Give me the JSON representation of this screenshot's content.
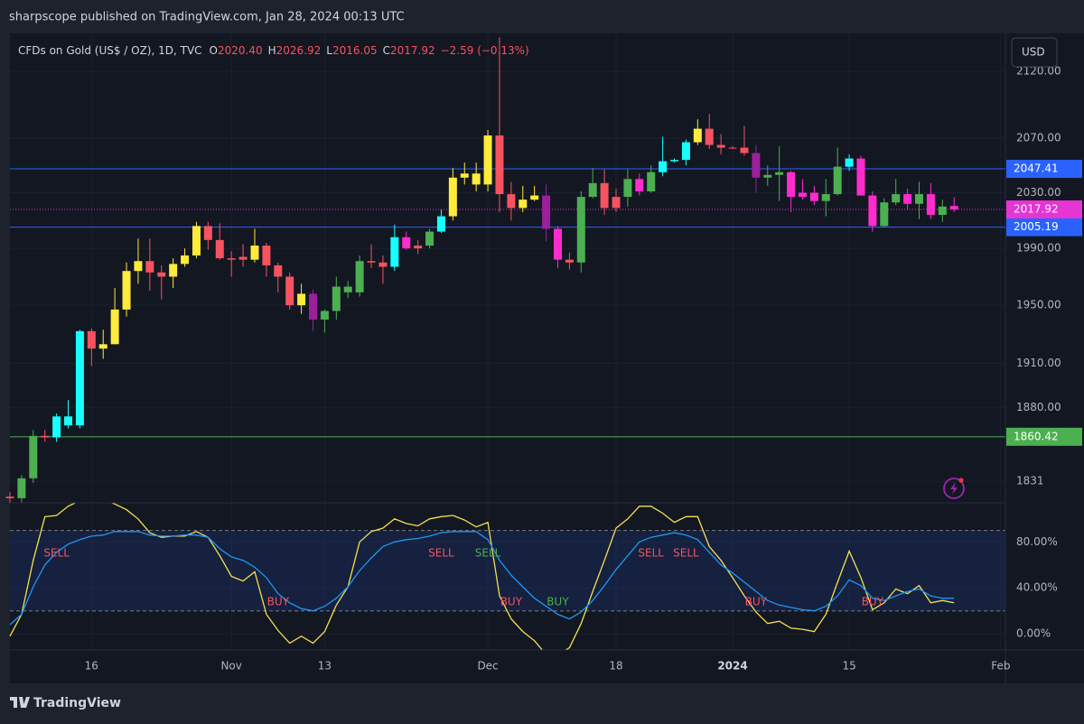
{
  "header": {
    "publisher": "sharpscope published on TradingView.com, Jan 28, 2024 00:13 UTC"
  },
  "chart_data": {
    "type": "candlestick",
    "symbol": "CFDs on Gold (US$ / OZ), 1D, TVC",
    "ohlc_legend": [
      {
        "key": "O",
        "value": "2020.40"
      },
      {
        "key": "H",
        "value": "2026.92"
      },
      {
        "key": "L",
        "value": "2016.05"
      },
      {
        "key": "C",
        "value": "2017.92"
      }
    ],
    "change": "−2.59 (−0.13%)",
    "currency": "USD",
    "candles": {
      "open": [
        1821,
        1820,
        1833,
        1861,
        1860,
        1874,
        1868,
        1932,
        1920,
        1923,
        1947,
        1974,
        1981,
        1973,
        1970,
        1979,
        1985,
        2006,
        1996,
        1983,
        1984,
        1982,
        1992,
        1978,
        1970,
        1950,
        1958,
        1940,
        1946,
        1963,
        1959,
        1981,
        1980,
        1977,
        1998,
        1990,
        1992,
        2002,
        2013,
        2041,
        2044,
        2036,
        2072,
        2029,
        2019,
        2025,
        2028,
        2004,
        1982,
        1980,
        2027,
        2037,
        2019,
        2027,
        2040,
        2031,
        2045,
        2053,
        2054,
        2067,
        2077,
        2065,
        2063,
        2063,
        2059,
        2041,
        2043,
        2045,
        2027,
        2030,
        2024,
        2029,
        2049,
        2055,
        2028,
        2006,
        2023,
        2029,
        2022,
        2029,
        2014,
        2020.4
      ],
      "high": [
        1824,
        1835,
        1865,
        1865,
        1876,
        1885,
        1933,
        1934,
        1933,
        1962,
        1980,
        1997,
        1997,
        1978,
        1983,
        1990,
        2009,
        2009,
        2008,
        1988,
        1993,
        2004,
        1994,
        1980,
        1973,
        1965,
        1961,
        1947,
        1970,
        1967,
        1985,
        1993,
        1985,
        2007,
        2002,
        1996,
        2004,
        2018,
        2048,
        2052,
        2052,
        2076,
        2146,
        2038,
        2035,
        2035,
        2036,
        2006,
        1987,
        2031,
        2048,
        2047,
        2033,
        2047,
        2044,
        2050,
        2071,
        2055,
        2069,
        2084,
        2088,
        2073,
        2064,
        2079,
        2065,
        2050,
        2064,
        2046,
        2040,
        2035,
        2040,
        2063,
        2058,
        2057,
        2031,
        2026,
        2040,
        2033,
        2038,
        2037,
        2025,
        2026.92
      ],
      "low": [
        1815,
        1811,
        1830,
        1857,
        1857,
        1866,
        1866,
        1908,
        1913,
        1923,
        1942,
        1965,
        1960,
        1954,
        1962,
        1977,
        1983,
        1989,
        1982,
        1970,
        1977,
        1980,
        1970,
        1959,
        1947,
        1944,
        1932,
        1931,
        1940,
        1955,
        1956,
        1976,
        1965,
        1974,
        1989,
        1986,
        1990,
        2001,
        2010,
        2036,
        2031,
        2031,
        2016,
        2010,
        2016,
        2024,
        1995,
        1976,
        1975,
        1973,
        2026,
        2014,
        2016,
        2020,
        2028,
        2030,
        2042,
        2052,
        2050,
        2065,
        2062,
        2058,
        2062,
        2057,
        2030,
        2035,
        2024,
        2016,
        2025,
        2021,
        2013,
        2028,
        2046,
        2028,
        2002,
        2005,
        2021,
        2018,
        2011,
        2011,
        2009,
        2016.05
      ],
      "close": [
        1820,
        1833,
        1861,
        1860,
        1874,
        1868,
        1932,
        1920,
        1923,
        1947,
        1974,
        1981,
        1973,
        1970,
        1979,
        1985,
        2006,
        1996,
        1983,
        1982,
        1982,
        1992,
        1978,
        1970,
        1950,
        1958,
        1940,
        1946,
        1963,
        1959,
        1981,
        1980,
        1977,
        1998,
        1990,
        1992,
        2002,
        2013,
        2041,
        2044,
        2036,
        2072,
        2029,
        2019,
        2025,
        2028,
        2004,
        1982,
        1980,
        2027,
        2037,
        2019,
        2027,
        2040,
        2031,
        2045,
        2053,
        2054,
        2067,
        2077,
        2065,
        2063,
        2063,
        2059,
        2041,
        2043,
        2045,
        2027,
        2030,
        2024,
        2029,
        2049,
        2055,
        2028,
        2006,
        2023,
        2029,
        2022,
        2029,
        2014,
        2020,
        2017.92
      ],
      "colors": [
        "#f7525f",
        "#4caf50",
        "#4caf50",
        "#f7525f",
        "#18ffff",
        "#18ffff",
        "#18ffff",
        "#f7525f",
        "#ffeb3b",
        "#ffeb3b",
        "#ffeb3b",
        "#ffeb3b",
        "#f7525f",
        "#f7525f",
        "#ffeb3b",
        "#ffeb3b",
        "#ffeb3b",
        "#f7525f",
        "#f7525f",
        "#f7525f",
        "#f7525f",
        "#ffeb3b",
        "#f7525f",
        "#f7525f",
        "#f7525f",
        "#ffeb3b",
        "#9c1f9c",
        "#4caf50",
        "#4caf50",
        "#4caf50",
        "#4caf50",
        "#f7525f",
        "#f7525f",
        "#18ffff",
        "#ff2ccd",
        "#f7525f",
        "#4caf50",
        "#18ffff",
        "#ffeb3b",
        "#ffeb3b",
        "#ffeb3b",
        "#ffeb3b",
        "#f7525f",
        "#f7525f",
        "#ffeb3b",
        "#ffeb3b",
        "#9c1f9c",
        "#ff2ccd",
        "#f7525f",
        "#4caf50",
        "#4caf50",
        "#f7525f",
        "#f7525f",
        "#4caf50",
        "#ff2ccd",
        "#4caf50",
        "#18ffff",
        "#18ffff",
        "#18ffff",
        "#ffeb3b",
        "#f7525f",
        "#f7525f",
        "#f7525f",
        "#f7525f",
        "#9c1f9c",
        "#4caf50",
        "#4caf50",
        "#ff2ccd",
        "#ff2ccd",
        "#ff2ccd",
        "#4caf50",
        "#4caf50",
        "#18ffff",
        "#ff2ccd",
        "#ff2ccd",
        "#4caf50",
        "#4caf50",
        "#ff2ccd",
        "#4caf50",
        "#ff2ccd",
        "#4caf50",
        "#ff2ccd"
      ]
    },
    "xlim": [
      0,
      85.4
    ],
    "xticks": [
      {
        "value": 7,
        "label": "16"
      },
      {
        "value": 19,
        "label": "Nov"
      },
      {
        "value": 27,
        "label": "13"
      },
      {
        "value": 41,
        "label": "Dec"
      },
      {
        "value": 52,
        "label": "18"
      },
      {
        "value": 62,
        "label": "2024"
      },
      {
        "value": 72,
        "label": "15"
      },
      {
        "value": 85,
        "label": "Feb"
      }
    ],
    "ylim": [
      1817,
      2149
    ],
    "log": true,
    "yticks": [
      {
        "value": 2120,
        "label": "2120.00"
      },
      {
        "value": 2070,
        "label": "2070.00"
      },
      {
        "value": 2030,
        "label": "2030.00"
      },
      {
        "value": 1990,
        "label": "1990.00"
      },
      {
        "value": 1950,
        "label": "1950.00"
      },
      {
        "value": 1910,
        "label": "1910.00"
      },
      {
        "value": 1880,
        "label": "1880.00"
      },
      1831
    ],
    "levels": [
      {
        "value": 2047.41,
        "color": "#2962ff"
      },
      {
        "value": 2005.19,
        "color": "#2962ff"
      },
      {
        "value": 1860.42,
        "color": "#4caf50"
      }
    ],
    "last_price": {
      "value": 2017.92,
      "color": "#e535d4"
    },
    "grid": true,
    "oscillator": {
      "ylim": [
        -14,
        114
      ],
      "yticks": [
        {
          "value": 80,
          "label": "80.00%"
        },
        {
          "value": 40,
          "label": "40.00%"
        },
        {
          "value": 0,
          "label": "0.00%"
        }
      ],
      "bands": [
        90,
        20
      ],
      "series": [
        {
          "color": "#f5e050",
          "values": [
            -2,
            17,
            64,
            102,
            103,
            111,
            116,
            120,
            117,
            113,
            108,
            100,
            88,
            84,
            85,
            85,
            89,
            84,
            68,
            50,
            46,
            54,
            17,
            3,
            -8,
            -2,
            -8,
            2,
            25,
            41,
            80,
            89,
            92,
            100,
            96,
            94,
            100,
            102,
            103,
            99,
            93,
            97,
            33,
            13,
            2,
            -6,
            -18,
            -18,
            -12,
            9,
            37,
            64,
            92,
            100,
            111,
            111,
            105,
            97,
            102,
            102,
            76,
            64,
            49,
            33,
            19,
            9,
            11,
            5,
            4,
            2,
            17,
            45,
            72,
            49,
            21,
            27,
            39,
            35,
            42,
            27,
            29,
            27
          ]
        },
        {
          "color": "#2196f3",
          "values": [
            8,
            17,
            41,
            60,
            71,
            78,
            82,
            85,
            86,
            89,
            89,
            89,
            86,
            85,
            85,
            86,
            86,
            84,
            74,
            67,
            64,
            58,
            49,
            35,
            27,
            22,
            20,
            24,
            31,
            41,
            55,
            66,
            76,
            80,
            82,
            83,
            85,
            88,
            89,
            89,
            89,
            82,
            64,
            51,
            41,
            31,
            24,
            17,
            13,
            19,
            29,
            42,
            56,
            68,
            80,
            84,
            86,
            88,
            86,
            82,
            71,
            60,
            53,
            45,
            37,
            29,
            25,
            23,
            21,
            20,
            24,
            33,
            47,
            42,
            31,
            29,
            33,
            37,
            39,
            33,
            31,
            31
          ]
        }
      ],
      "sell_signals": {
        "label": "SELL",
        "bars": [
          4,
          37,
          41,
          55,
          58
        ],
        "colors": [
          "#f7525f",
          "#f7525f",
          "#4caf50",
          "#f7525f",
          "#f7525f"
        ]
      },
      "buy_signals": {
        "label": "BUY",
        "bars": [
          23,
          43,
          47,
          64,
          74
        ],
        "colors": [
          "#f7525f",
          "#f7525f",
          "#4caf50",
          "#f7525f",
          "#f7525f"
        ]
      }
    }
  },
  "footer": {
    "brand": "TradingView"
  }
}
